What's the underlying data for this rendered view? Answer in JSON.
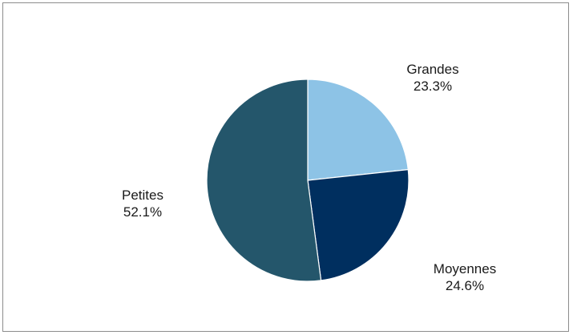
{
  "chart_data": {
    "type": "pie",
    "title": "",
    "start_angle_deg": 0,
    "direction": "clockwise",
    "slices": [
      {
        "label": "Grandes",
        "value": 23.3,
        "value_label": "23.3%",
        "color": "#8dc3e6"
      },
      {
        "label": "Moyennes",
        "value": 24.6,
        "value_label": "24.6%",
        "color": "#002f5f"
      },
      {
        "label": "Petites",
        "value": 52.1,
        "value_label": "52.1%",
        "color": "#24566b"
      }
    ],
    "slice_border_color": "#ffffff",
    "legend": "none"
  }
}
